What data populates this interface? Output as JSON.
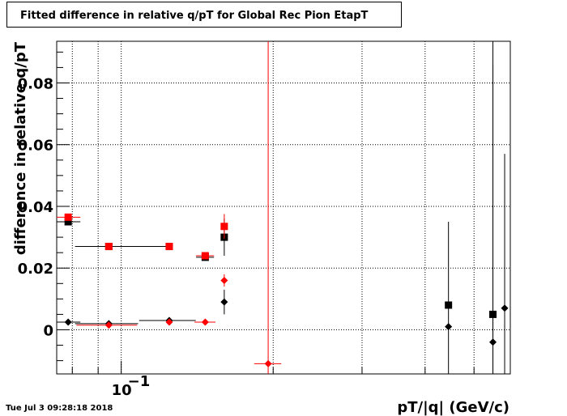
{
  "chart_data": {
    "type": "scatter",
    "title": "Fitted difference in relative q/pT for Global Rec Pion EtapT",
    "xlabel": "pT/|q| (GeV/c)",
    "ylabel": "difference in relative q/pT",
    "x_scale": "log",
    "xlim": [
      0.0745,
      0.59
    ],
    "ylim": [
      -0.0143,
      0.0935
    ],
    "grid": true,
    "y_ticks": [
      {
        "value": 0,
        "label": "0"
      },
      {
        "value": 0.02,
        "label": "0.02"
      },
      {
        "value": 0.04,
        "label": "0.04"
      },
      {
        "value": 0.06,
        "label": "0.06"
      },
      {
        "value": 0.08,
        "label": "0.08"
      }
    ],
    "x_tick_label": {
      "value": 0.1,
      "base": "10",
      "exponent": "−1"
    },
    "series": [
      {
        "marker": "square",
        "color": "#000000",
        "points": [
          {
            "x": 0.0785,
            "y": 0.035,
            "xerr": [
              0.0045,
              0.0045
            ],
            "yerr": 0.001
          },
          {
            "x": 0.0945,
            "y": 0.027,
            "xerr": [
              0.0135,
              0.0305
            ],
            "yerr": 0.001
          },
          {
            "x": 0.1245,
            "y": 0.027,
            "xerr": [
              0.0,
              0.0
            ],
            "yerr": 0.001
          },
          {
            "x": 0.1467,
            "y": 0.0235,
            "xerr": [
              0.006,
              0.006
            ],
            "yerr": 0.001
          },
          {
            "x": 0.16,
            "y": 0.03,
            "xerr": [
              0.0,
              0.0
            ],
            "yerr": 0.006
          },
          {
            "x": 0.445,
            "y": 0.008,
            "xerr": [
              0.0,
              0.0
            ],
            "yerr": 0.027
          },
          {
            "x": 0.545,
            "y": 0.005,
            "xerr": [
              0.0,
              0.0
            ],
            "yerr": 0.09
          }
        ]
      },
      {
        "marker": "square",
        "color": "#ff0000",
        "points": [
          {
            "x": 0.0785,
            "y": 0.0365,
            "xerr": [
              0.0045,
              0.0045
            ],
            "yerr": 0.001
          },
          {
            "x": 0.0945,
            "y": 0.027,
            "xerr": [
              0.0,
              0.0
            ],
            "yerr": 0.001
          },
          {
            "x": 0.1245,
            "y": 0.027,
            "xerr": [
              0.0,
              0.0
            ],
            "yerr": 0.001
          },
          {
            "x": 0.1467,
            "y": 0.024,
            "xerr": [
              0.006,
              0.006
            ],
            "yerr": 0.001
          },
          {
            "x": 0.16,
            "y": 0.0335,
            "xerr": [
              0.0,
              0.0
            ],
            "yerr": 0.004
          }
        ]
      },
      {
        "marker": "diamond",
        "color": "#000000",
        "points": [
          {
            "x": 0.0785,
            "y": 0.0025,
            "xerr": [
              0.0045,
              0.0045
            ],
            "yerr": 0.0
          },
          {
            "x": 0.0945,
            "y": 0.002,
            "xerr": [
              0.0135,
              0.0135
            ],
            "yerr": 0.0
          },
          {
            "x": 0.1245,
            "y": 0.003,
            "xerr": [
              0.016,
              0.016
            ],
            "yerr": 0.0
          },
          {
            "x": 0.16,
            "y": 0.009,
            "xerr": [
              0.0,
              0.0
            ],
            "yerr": 0.004
          },
          {
            "x": 0.445,
            "y": 0.001,
            "xerr": [
              0.0,
              0.0
            ],
            "yerr": 0.0
          },
          {
            "x": 0.545,
            "y": -0.004,
            "xerr": [
              0.0,
              0.0
            ],
            "yerr": 0.09
          },
          {
            "x": 0.575,
            "y": 0.007,
            "xerr": [
              0.0,
              0.0
            ],
            "yerr": 0.05
          }
        ]
      },
      {
        "marker": "diamond",
        "color": "#ff0000",
        "points": [
          {
            "x": 0.0945,
            "y": 0.0015,
            "xerr": [
              0.013,
              0.013
            ],
            "yerr": 0.0
          },
          {
            "x": 0.1245,
            "y": 0.0025,
            "xerr": [
              0.0,
              0.0
            ],
            "yerr": 0.0
          },
          {
            "x": 0.1467,
            "y": 0.0025,
            "xerr": [
              0.007,
              0.007
            ],
            "yerr": 0.0
          },
          {
            "x": 0.16,
            "y": 0.016,
            "xerr": [
              0.0,
              0.0
            ],
            "yerr": 0.002
          },
          {
            "x": 0.1955,
            "y": -0.011,
            "xerr": [
              0.012,
              0.012
            ],
            "yerr": 0.11
          }
        ]
      }
    ]
  },
  "footer": {
    "timestamp": "Tue Jul  3 09:28:18 2018"
  }
}
